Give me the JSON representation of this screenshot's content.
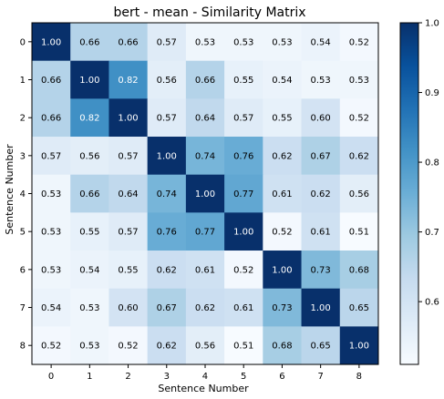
{
  "chart_data": {
    "type": "heatmap",
    "title": "bert - mean - Similarity Matrix",
    "xlabel": "Sentence Number",
    "ylabel": "Sentence Number",
    "x_categories": [
      "0",
      "1",
      "2",
      "3",
      "4",
      "5",
      "6",
      "7",
      "8"
    ],
    "y_categories": [
      "0",
      "1",
      "2",
      "3",
      "4",
      "5",
      "6",
      "7",
      "8"
    ],
    "values": [
      [
        1.0,
        0.66,
        0.66,
        0.57,
        0.53,
        0.53,
        0.53,
        0.54,
        0.52
      ],
      [
        0.66,
        1.0,
        0.82,
        0.56,
        0.66,
        0.55,
        0.54,
        0.53,
        0.53
      ],
      [
        0.66,
        0.82,
        1.0,
        0.57,
        0.64,
        0.57,
        0.55,
        0.6,
        0.52
      ],
      [
        0.57,
        0.56,
        0.57,
        1.0,
        0.74,
        0.76,
        0.62,
        0.67,
        0.62
      ],
      [
        0.53,
        0.66,
        0.64,
        0.74,
        1.0,
        0.77,
        0.61,
        0.62,
        0.56
      ],
      [
        0.53,
        0.55,
        0.57,
        0.76,
        0.77,
        1.0,
        0.52,
        0.61,
        0.51
      ],
      [
        0.53,
        0.54,
        0.55,
        0.62,
        0.61,
        0.52,
        1.0,
        0.73,
        0.68
      ],
      [
        0.54,
        0.53,
        0.6,
        0.67,
        0.62,
        0.61,
        0.73,
        1.0,
        0.65
      ],
      [
        0.52,
        0.53,
        0.52,
        0.62,
        0.56,
        0.51,
        0.68,
        0.65,
        1.0
      ]
    ],
    "colormap": "Blues",
    "colorbar": {
      "range": [
        0.51,
        1.0
      ],
      "ticks": [
        1.0,
        0.9,
        0.8,
        0.7,
        0.6
      ],
      "tick_labels": [
        "1.0",
        "0.9",
        "0.8",
        "0.7",
        "0.6"
      ]
    },
    "grid": false
  }
}
